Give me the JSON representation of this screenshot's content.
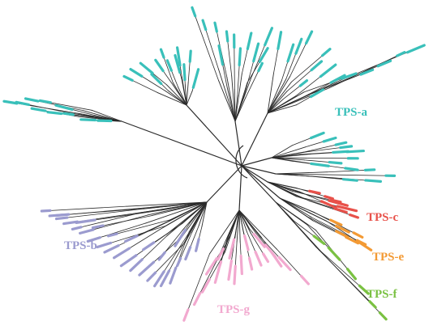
{
  "figure": {
    "type": "unrooted phylogenetic tree",
    "background": "#ffffff",
    "clades": [
      {
        "id": "a",
        "label": "TPS-a",
        "color": "#39c0ba",
        "leaves": 95
      },
      {
        "id": "b",
        "label": "TPS-b",
        "color": "#9b9bcf",
        "leaves": 42
      },
      {
        "id": "c",
        "label": "TPS-c",
        "color": "#e8514a",
        "leaves": 8
      },
      {
        "id": "e",
        "label": "TPS-e",
        "color": "#f39a34",
        "leaves": 7
      },
      {
        "id": "f",
        "label": "TPS-f",
        "color": "#7ac142",
        "leaves": 6
      },
      {
        "id": "g",
        "label": "TPS-g",
        "color": "#f2a9cf",
        "leaves": 30
      }
    ],
    "branch_color": "#2b2b2b"
  }
}
